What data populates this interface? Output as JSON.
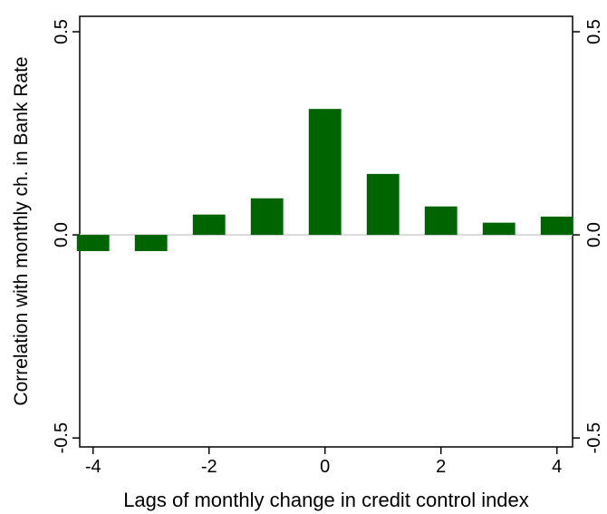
{
  "chart_data": {
    "type": "bar",
    "x_label": "Lags of monthly change in credit control index",
    "y_label": "Correlation with monthly ch. in Bank Rate",
    "x": [
      -4,
      -3,
      -2,
      -1,
      0,
      1,
      2,
      3,
      4
    ],
    "values": [
      -0.04,
      -0.04,
      0.05,
      0.09,
      0.31,
      0.15,
      0.07,
      0.03,
      0.045
    ],
    "color": "#006400",
    "xlim": [
      -4.23,
      4.27
    ],
    "xticks": [
      -4,
      -2,
      0,
      2,
      4
    ],
    "ylim": [
      -0.522,
      0.538
    ],
    "yticks": [
      -0.5,
      {
        "value": 0,
        "label": "0.0"
      },
      0.5
    ],
    "bar_width": 0.56
  }
}
